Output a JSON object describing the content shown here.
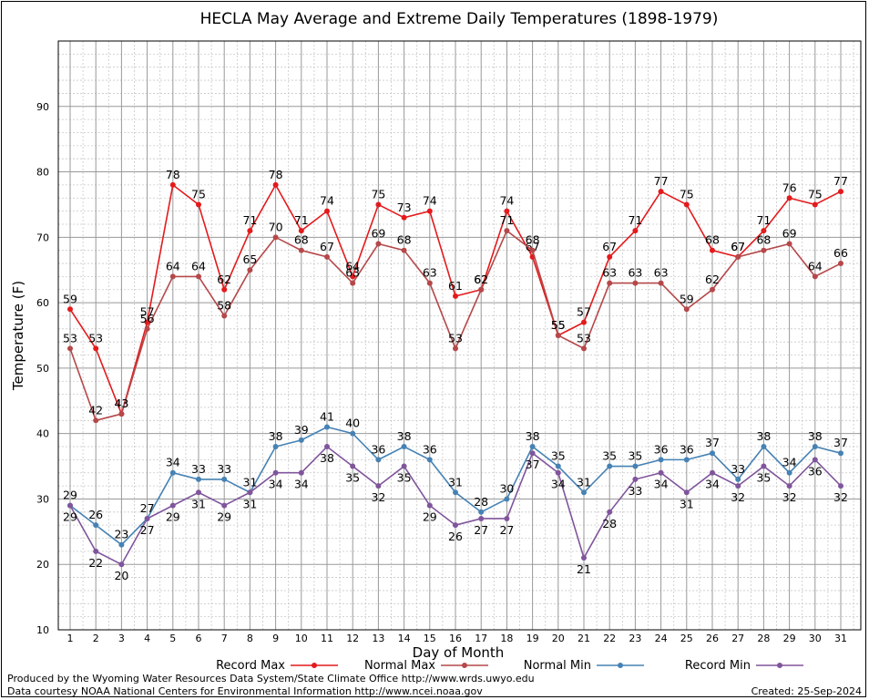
{
  "chart_data": {
    "type": "line",
    "title": "HECLA May Average and Extreme Daily Temperatures (1898-1979)",
    "xlabel": "Day of Month",
    "ylabel": "Temperature (F)",
    "xlim": [
      1,
      31
    ],
    "ylim": [
      10,
      100
    ],
    "y_ticks": [
      10,
      20,
      30,
      40,
      50,
      60,
      70,
      80,
      90
    ],
    "categories": [
      "1",
      "2",
      "3",
      "4",
      "5",
      "6",
      "7",
      "8",
      "9",
      "10",
      "11",
      "12",
      "13",
      "14",
      "15",
      "16",
      "17",
      "18",
      "19",
      "20",
      "21",
      "22",
      "23",
      "24",
      "25",
      "26",
      "27",
      "28",
      "29",
      "30",
      "31"
    ],
    "grid": true,
    "legend_position": "bottom",
    "series": [
      {
        "name": "Record Max",
        "color": "#e41a1c",
        "label_pos": "above",
        "values": [
          59,
          53,
          43,
          57,
          78,
          75,
          62,
          71,
          78,
          71,
          74,
          64,
          75,
          73,
          74,
          61,
          62,
          74,
          67,
          55,
          57,
          67,
          71,
          77,
          75,
          68,
          67,
          71,
          76,
          75,
          77
        ]
      },
      {
        "name": "Normal Max",
        "color": "#b5484a",
        "label_pos": "above",
        "values": [
          53,
          42,
          43,
          56,
          64,
          64,
          58,
          65,
          70,
          68,
          67,
          63,
          69,
          68,
          63,
          53,
          62,
          71,
          68,
          55,
          53,
          63,
          63,
          63,
          59,
          62,
          67,
          68,
          69,
          64,
          66
        ]
      },
      {
        "name": "Normal Min",
        "color": "#4682b4",
        "label_pos": "above",
        "values": [
          29,
          26,
          23,
          27,
          34,
          33,
          33,
          31,
          38,
          39,
          41,
          40,
          36,
          38,
          36,
          31,
          28,
          30,
          38,
          35,
          31,
          35,
          35,
          36,
          36,
          37,
          33,
          38,
          34,
          38,
          37
        ]
      },
      {
        "name": "Record Min",
        "color": "#80559c",
        "label_pos": "below",
        "values": [
          29,
          22,
          20,
          27,
          29,
          31,
          29,
          31,
          34,
          34,
          38,
          35,
          32,
          35,
          29,
          26,
          27,
          27,
          37,
          34,
          21,
          28,
          33,
          34,
          31,
          34,
          32,
          35,
          32,
          36,
          32
        ]
      }
    ]
  },
  "footer": {
    "produced_by": "Produced by the Wyoming Water Resources Data System/State Climate Office http://www.wrds.uwyo.edu",
    "courtesy": "Data courtesy NOAA National Centers for Environmental Information http://www.ncei.noaa.gov",
    "created": "Created:  25-Sep-2024"
  }
}
